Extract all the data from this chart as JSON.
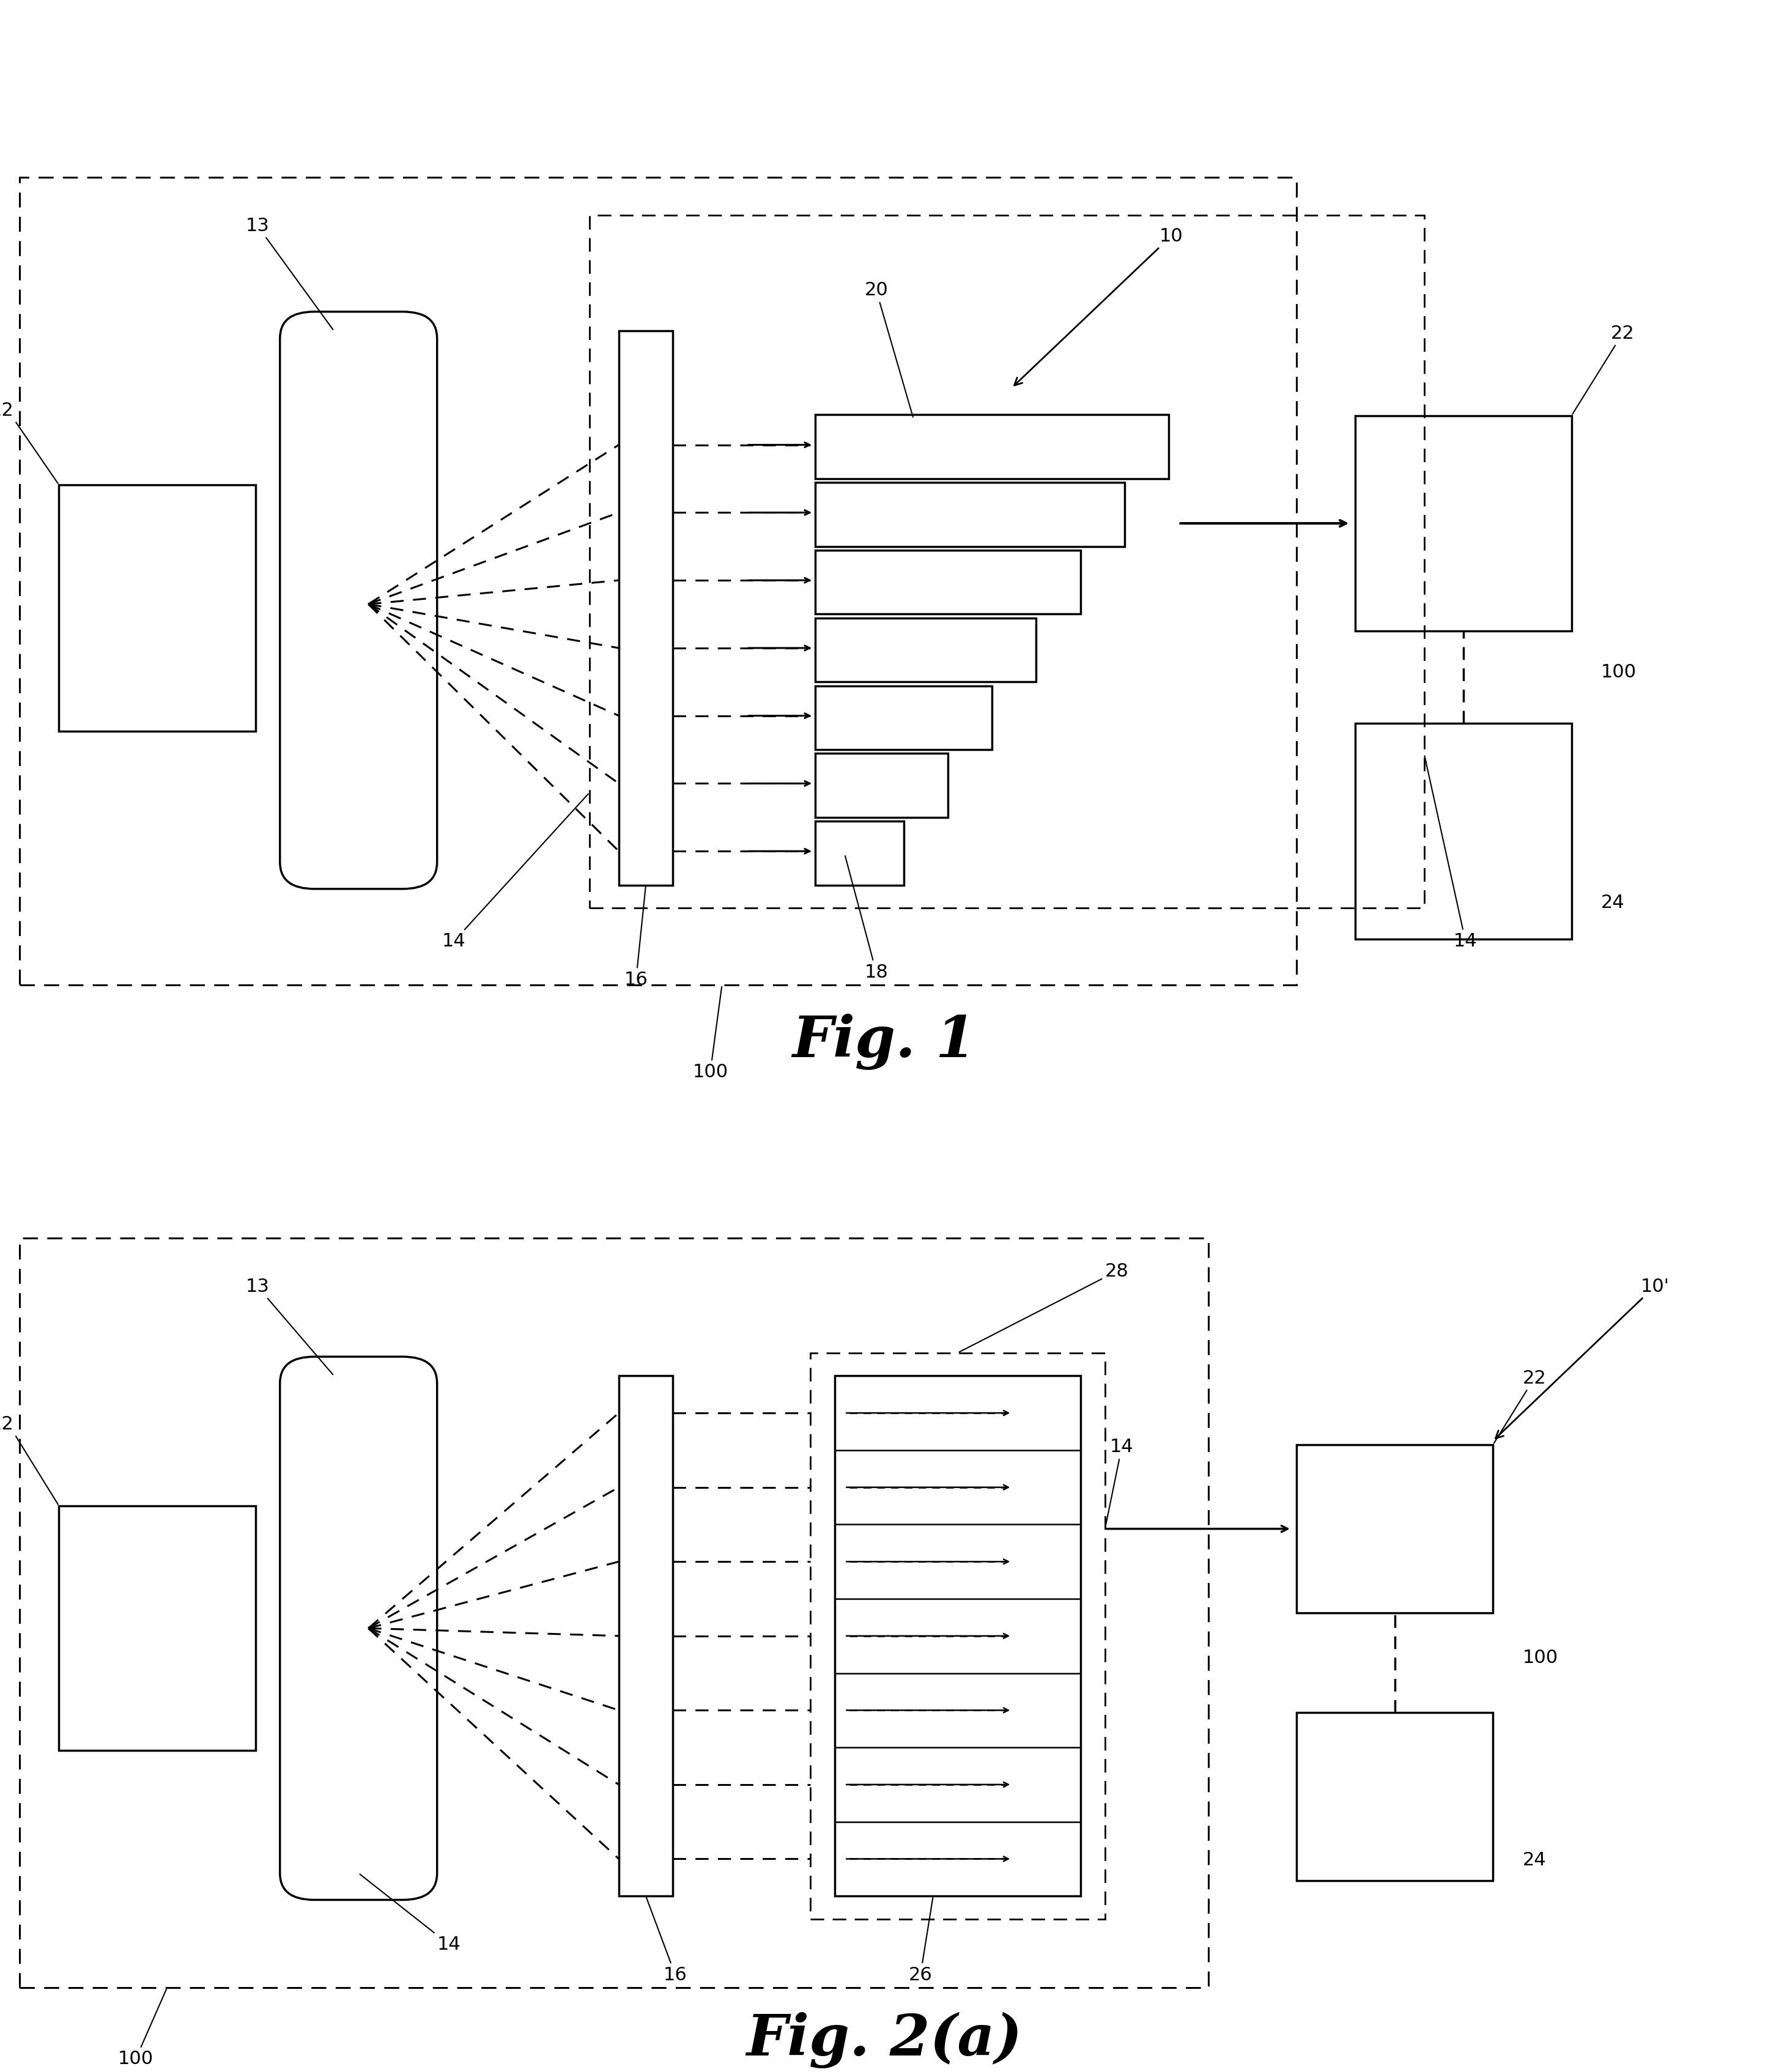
{
  "fig1_title": "Fig. 1",
  "fig2_title": "Fig. 2(a)",
  "background_color": "#ffffff",
  "line_color": "#000000"
}
